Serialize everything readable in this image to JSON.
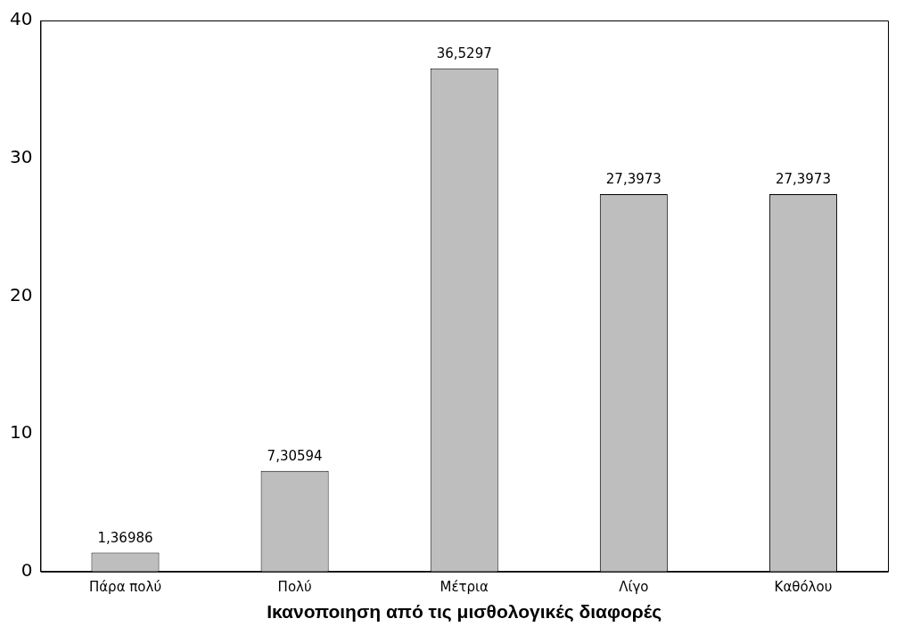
{
  "chart_data": {
    "type": "bar",
    "xlabel": "Ικανοποιηση από τις μισθολογικές διαφορές",
    "categories": [
      "Πάρα πολύ",
      "Πολύ",
      "Μέτρια",
      "Λίγο",
      "Καθόλου"
    ],
    "values": [
      1.36986,
      7.30594,
      36.5297,
      27.3973,
      27.3973
    ],
    "value_labels": [
      "1,36986",
      "7,30594",
      "36,5297",
      "27,3973",
      "27,3973"
    ],
    "color": "#bebebe",
    "ylim": [
      0,
      40
    ],
    "yticks": [
      0,
      10,
      20,
      30,
      40
    ],
    "grid": false,
    "legend": false
  }
}
